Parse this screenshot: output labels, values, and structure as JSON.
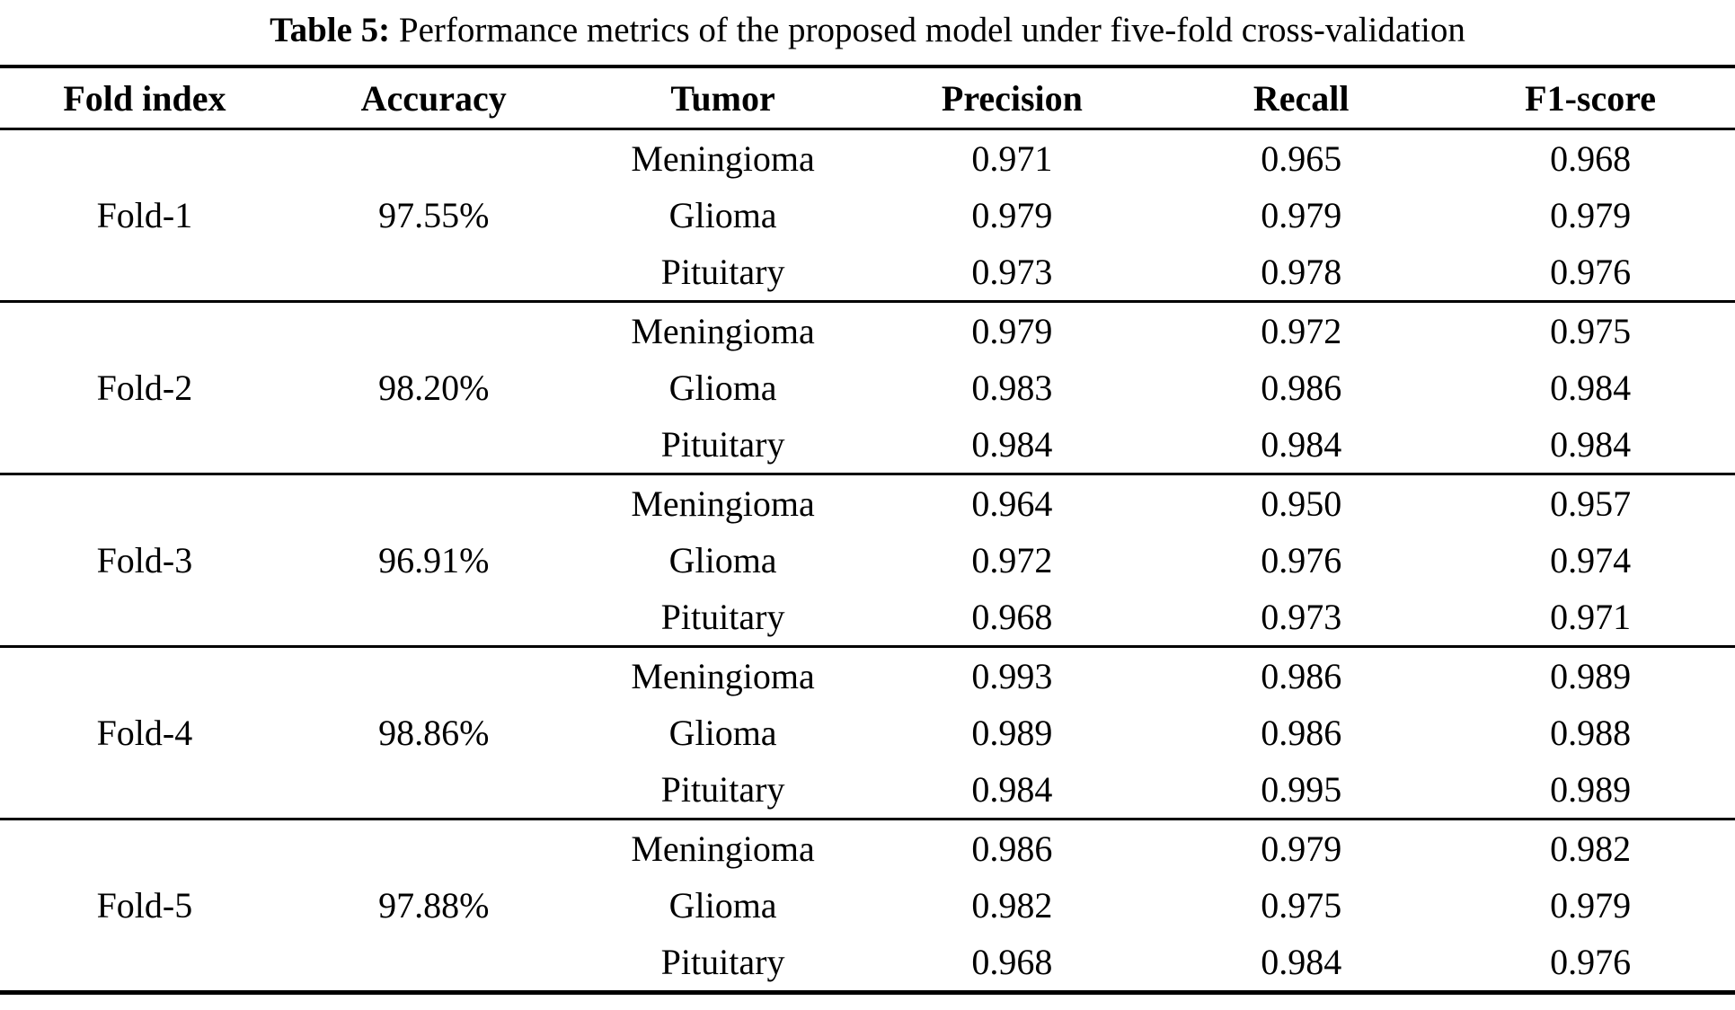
{
  "caption": {
    "label": "Table 5:",
    "text": " Performance metrics of the proposed model under five-fold cross-validation"
  },
  "colors": {
    "text": "#000000",
    "background": "#ffffff",
    "rule": "#000000"
  },
  "table": {
    "headers": [
      "Fold index",
      "Accuracy",
      "Tumor",
      "Precision",
      "Recall",
      "F1-score"
    ],
    "folds": [
      {
        "fold": "Fold-1",
        "accuracy": "97.55%",
        "rows": [
          {
            "tumor": "Meningioma",
            "precision": "0.971",
            "recall": "0.965",
            "f1": "0.968"
          },
          {
            "tumor": "Glioma",
            "precision": "0.979",
            "recall": "0.979",
            "f1": "0.979"
          },
          {
            "tumor": "Pituitary",
            "precision": "0.973",
            "recall": "0.978",
            "f1": "0.976"
          }
        ]
      },
      {
        "fold": "Fold-2",
        "accuracy": "98.20%",
        "rows": [
          {
            "tumor": "Meningioma",
            "precision": "0.979",
            "recall": "0.972",
            "f1": "0.975"
          },
          {
            "tumor": "Glioma",
            "precision": "0.983",
            "recall": "0.986",
            "f1": "0.984"
          },
          {
            "tumor": "Pituitary",
            "precision": "0.984",
            "recall": "0.984",
            "f1": "0.984"
          }
        ]
      },
      {
        "fold": "Fold-3",
        "accuracy": "96.91%",
        "rows": [
          {
            "tumor": "Meningioma",
            "precision": "0.964",
            "recall": "0.950",
            "f1": "0.957"
          },
          {
            "tumor": "Glioma",
            "precision": "0.972",
            "recall": "0.976",
            "f1": "0.974"
          },
          {
            "tumor": "Pituitary",
            "precision": "0.968",
            "recall": "0.973",
            "f1": "0.971"
          }
        ]
      },
      {
        "fold": "Fold-4",
        "accuracy": "98.86%",
        "rows": [
          {
            "tumor": "Meningioma",
            "precision": "0.993",
            "recall": "0.986",
            "f1": "0.989"
          },
          {
            "tumor": "Glioma",
            "precision": "0.989",
            "recall": "0.986",
            "f1": "0.988"
          },
          {
            "tumor": "Pituitary",
            "precision": "0.984",
            "recall": "0.995",
            "f1": "0.989"
          }
        ]
      },
      {
        "fold": "Fold-5",
        "accuracy": "97.88%",
        "rows": [
          {
            "tumor": "Meningioma",
            "precision": "0.986",
            "recall": "0.979",
            "f1": "0.982"
          },
          {
            "tumor": "Glioma",
            "precision": "0.982",
            "recall": "0.975",
            "f1": "0.979"
          },
          {
            "tumor": "Pituitary",
            "precision": "0.968",
            "recall": "0.984",
            "f1": "0.976"
          }
        ]
      }
    ]
  }
}
